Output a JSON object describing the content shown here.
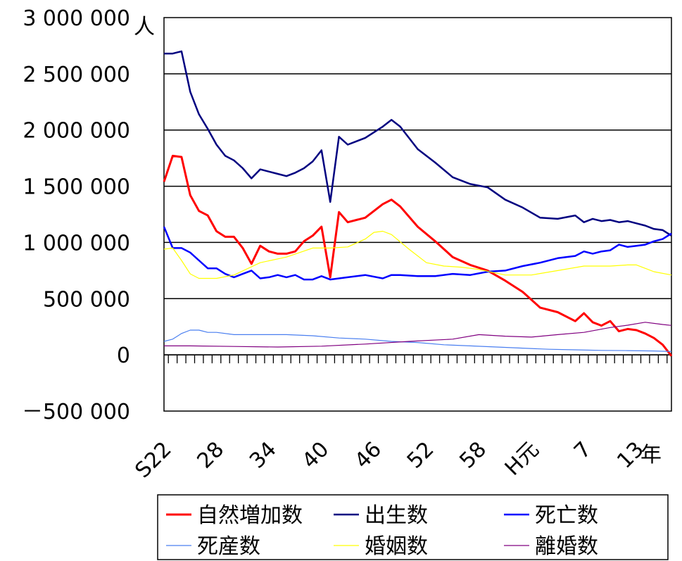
{
  "chart_data": {
    "type": "line",
    "title": "",
    "xlabel": "",
    "ylabel": "",
    "y_unit_label": "人",
    "x_unit_label": "年",
    "ylim": [
      -500000,
      3000000
    ],
    "yticks": [
      3000000,
      2500000,
      2000000,
      1500000,
      1000000,
      500000,
      0,
      -500000
    ],
    "ytick_labels": [
      "3 000 000",
      "2 500 000",
      "2 000 000",
      "1 500 000",
      "1 000 000",
      "500 000",
      "0",
      "－500 000"
    ],
    "xlim": [
      1947,
      2005
    ],
    "xtick_years": [
      1947,
      1953,
      1959,
      1965,
      1971,
      1977,
      1983,
      1989,
      1995,
      2001
    ],
    "xtick_labels": [
      "S22",
      "28",
      "34",
      "40",
      "46",
      "52",
      "58",
      "H元",
      "7",
      "13"
    ],
    "grid": "horizontal",
    "legend_position": "bottom",
    "series": [
      {
        "name": "自然増加数",
        "color": "#ff0000",
        "width": 3,
        "x": [
          1947,
          1948,
          1949,
          1950,
          1951,
          1952,
          1953,
          1954,
          1955,
          1956,
          1957,
          1958,
          1959,
          1960,
          1961,
          1962,
          1963,
          1964,
          1965,
          1966,
          1967,
          1968,
          1970,
          1972,
          1973,
          1974,
          1976,
          1978,
          1980,
          1982,
          1984,
          1986,
          1988,
          1990,
          1992,
          1994,
          1995,
          1996,
          1997,
          1998,
          1999,
          2000,
          2001,
          2002,
          2003,
          2004,
          2005
        ],
        "values": [
          1540000,
          1770000,
          1760000,
          1420000,
          1280000,
          1240000,
          1100000,
          1050000,
          1050000,
          950000,
          810000,
          970000,
          920000,
          900000,
          900000,
          920000,
          1010000,
          1060000,
          1140000,
          690000,
          1270000,
          1180000,
          1220000,
          1340000,
          1380000,
          1320000,
          1140000,
          1010000,
          870000,
          800000,
          750000,
          660000,
          560000,
          420000,
          380000,
          300000,
          370000,
          290000,
          260000,
          300000,
          210000,
          230000,
          220000,
          190000,
          150000,
          90000,
          -10000
        ]
      },
      {
        "name": "出生数",
        "color": "#000080",
        "width": 2.5,
        "x": [
          1947,
          1948,
          1949,
          1950,
          1951,
          1952,
          1953,
          1954,
          1955,
          1956,
          1957,
          1958,
          1959,
          1960,
          1961,
          1962,
          1963,
          1964,
          1965,
          1966,
          1967,
          1968,
          1970,
          1972,
          1973,
          1974,
          1976,
          1978,
          1980,
          1982,
          1984,
          1986,
          1988,
          1990,
          1992,
          1994,
          1995,
          1996,
          1997,
          1998,
          1999,
          2000,
          2001,
          2002,
          2003,
          2004,
          2005
        ],
        "values": [
          2680000,
          2680000,
          2700000,
          2340000,
          2140000,
          2010000,
          1870000,
          1770000,
          1730000,
          1660000,
          1570000,
          1650000,
          1630000,
          1610000,
          1590000,
          1620000,
          1660000,
          1720000,
          1820000,
          1360000,
          1940000,
          1870000,
          1930000,
          2030000,
          2090000,
          2030000,
          1830000,
          1710000,
          1580000,
          1520000,
          1490000,
          1380000,
          1310000,
          1220000,
          1210000,
          1240000,
          1180000,
          1210000,
          1190000,
          1200000,
          1180000,
          1190000,
          1170000,
          1150000,
          1120000,
          1110000,
          1060000
        ]
      },
      {
        "name": "死亡数",
        "color": "#0000ff",
        "width": 2.5,
        "x": [
          1947,
          1948,
          1949,
          1950,
          1951,
          1952,
          1953,
          1954,
          1955,
          1956,
          1957,
          1958,
          1959,
          1960,
          1961,
          1962,
          1963,
          1964,
          1965,
          1966,
          1967,
          1968,
          1970,
          1972,
          1973,
          1974,
          1976,
          1978,
          1980,
          1982,
          1984,
          1986,
          1988,
          1990,
          1992,
          1994,
          1995,
          1996,
          1997,
          1998,
          1999,
          2000,
          2001,
          2002,
          2003,
          2004,
          2005
        ],
        "values": [
          1140000,
          950000,
          950000,
          910000,
          840000,
          770000,
          770000,
          720000,
          690000,
          720000,
          750000,
          680000,
          690000,
          710000,
          690000,
          710000,
          670000,
          670000,
          700000,
          670000,
          680000,
          690000,
          710000,
          680000,
          710000,
          710000,
          700000,
          700000,
          720000,
          710000,
          740000,
          750000,
          790000,
          820000,
          860000,
          880000,
          920000,
          900000,
          920000,
          930000,
          980000,
          960000,
          970000,
          980000,
          1010000,
          1030000,
          1080000
        ]
      },
      {
        "name": "死産数",
        "color": "#4a7ff0",
        "width": 1.2,
        "x": [
          1947,
          1948,
          1949,
          1950,
          1951,
          1952,
          1953,
          1955,
          1958,
          1961,
          1964,
          1967,
          1970,
          1973,
          1976,
          1979,
          1982,
          1985,
          1988,
          1991,
          1994,
          1997,
          2000,
          2003,
          2005
        ],
        "values": [
          120000,
          140000,
          190000,
          220000,
          220000,
          200000,
          200000,
          180000,
          180000,
          180000,
          170000,
          150000,
          140000,
          120000,
          110000,
          90000,
          80000,
          70000,
          60000,
          50000,
          45000,
          40000,
          38000,
          35000,
          30000
        ]
      },
      {
        "name": "婚姻数",
        "color": "#ffff00",
        "width": 1.2,
        "x": [
          1947,
          1948,
          1949,
          1950,
          1951,
          1952,
          1953,
          1955,
          1958,
          1961,
          1964,
          1966,
          1968,
          1970,
          1971,
          1972,
          1973,
          1975,
          1977,
          1979,
          1981,
          1983,
          1986,
          1989,
          1992,
          1995,
          1998,
          2000,
          2001,
          2003,
          2005
        ],
        "values": [
          940000,
          950000,
          840000,
          720000,
          680000,
          680000,
          680000,
          710000,
          820000,
          870000,
          950000,
          950000,
          960000,
          1030000,
          1090000,
          1100000,
          1070000,
          940000,
          820000,
          790000,
          780000,
          760000,
          710000,
          710000,
          750000,
          790000,
          790000,
          800000,
          800000,
          740000,
          710000
        ]
      },
      {
        "name": "離婚数",
        "color": "#800080",
        "width": 1.2,
        "x": [
          1947,
          1950,
          1955,
          1960,
          1965,
          1970,
          1975,
          1980,
          1983,
          1986,
          1989,
          1992,
          1995,
          1998,
          2000,
          2002,
          2004,
          2005
        ],
        "values": [
          80000,
          80000,
          75000,
          70000,
          77000,
          96000,
          120000,
          140000,
          180000,
          166000,
          158000,
          180000,
          200000,
          243000,
          264000,
          290000,
          270000,
          262000
        ]
      }
    ]
  }
}
